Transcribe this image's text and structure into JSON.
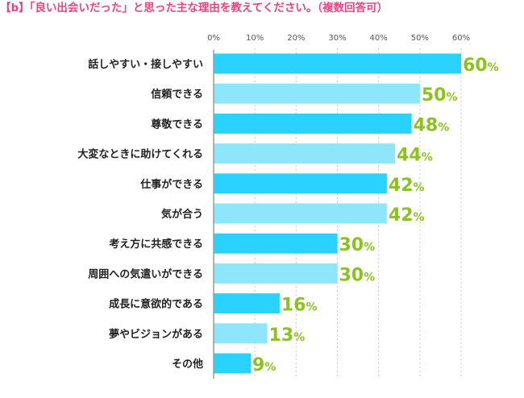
{
  "title": "【b】「良い出会いだった」と思った主な理由を教えてください。（複数回答可）",
  "chart_data": {
    "type": "bar",
    "orientation": "horizontal",
    "title": "【b】「良い出会いだった」と思った主な理由を教えてください。（複数回答可）",
    "categories": [
      "話しやすい・接しやすい",
      "信頼できる",
      "尊敬できる",
      "大変なときに助けてくれる",
      "仕事ができる",
      "気が合う",
      "考え方に共感できる",
      "周囲への気遣いができる",
      "成長に意欲的である",
      "夢やビジョンがある",
      "その他"
    ],
    "values": [
      60,
      50,
      48,
      44,
      42,
      42,
      30,
      30,
      16,
      13,
      9
    ],
    "value_labels": [
      "60",
      "50",
      "48",
      "44",
      "42",
      "42",
      "30",
      "30",
      "16",
      "13",
      "9"
    ],
    "value_unit": "%",
    "xlim": [
      0,
      60
    ],
    "ticks": [
      "0%",
      "10%",
      "20%",
      "30%",
      "40%",
      "50%",
      "60%"
    ],
    "grid": true,
    "colors": {
      "dark": "#29d2ff",
      "light": "#8ee6fb",
      "grid": "#c8c8c8",
      "value": "#8cc21f",
      "title": "#e8457f"
    }
  }
}
